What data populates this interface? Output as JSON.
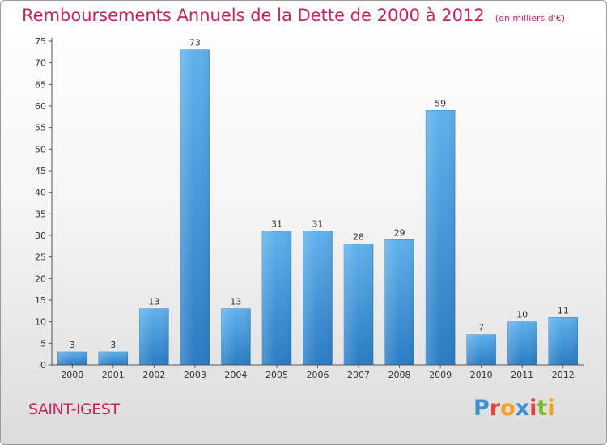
{
  "chart_data": {
    "type": "bar",
    "title": "Remboursements Annuels de la Dette de 2000 à 2012",
    "unit_note": "(en milliers d'€)",
    "categories": [
      "2000",
      "2001",
      "2002",
      "2003",
      "2004",
      "2005",
      "2006",
      "2007",
      "2008",
      "2009",
      "2010",
      "2011",
      "2012"
    ],
    "values": [
      3,
      3,
      13,
      73,
      13,
      31,
      31,
      28,
      29,
      59,
      7,
      10,
      11
    ],
    "ylim": [
      0,
      75
    ],
    "yticks": [
      0,
      5,
      10,
      15,
      20,
      25,
      30,
      35,
      40,
      45,
      50,
      55,
      60,
      65,
      70,
      75
    ],
    "grid": false,
    "bar_color": "#4a9fde"
  },
  "footer": {
    "commune": "SAINT-IGEST",
    "logo": "Proxiti"
  },
  "logo_letters": [
    {
      "ch": "P",
      "color": "#3a8fd6"
    },
    {
      "ch": "r",
      "color": "#e8403a"
    },
    {
      "ch": "o",
      "color": "#f2a11f"
    },
    {
      "ch": "x",
      "color": "#3a8fd6"
    },
    {
      "ch": "i",
      "color": "#e8403a"
    },
    {
      "ch": "t",
      "color": "#7cba2e"
    },
    {
      "ch": "i",
      "color": "#f2a11f"
    }
  ]
}
